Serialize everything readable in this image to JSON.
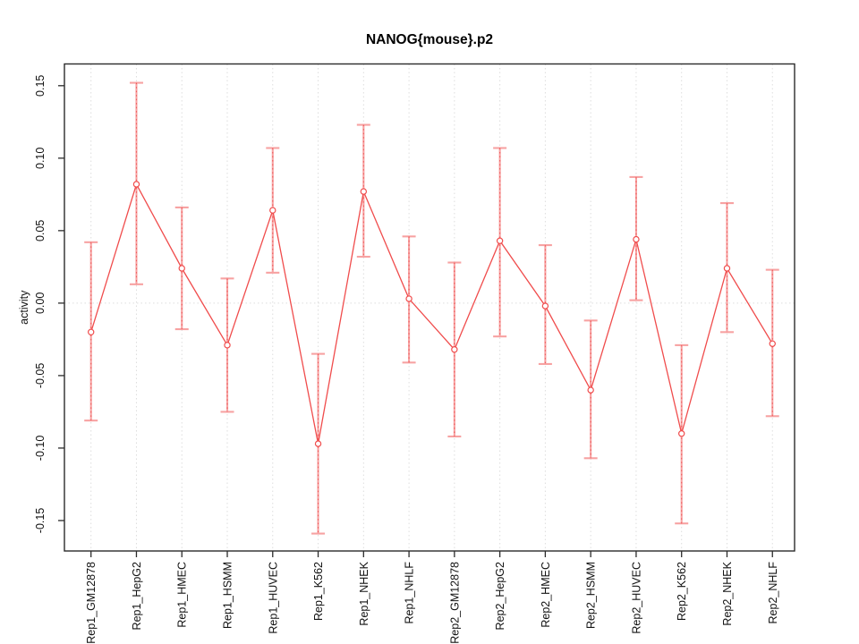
{
  "chart_data": {
    "type": "line",
    "title": "NANOG{mouse}.p2",
    "xlabel": "",
    "ylabel": "activity",
    "legend": null,
    "grid": {
      "vertical_dotted_gridlines": true,
      "zero_reference_dotted_line": true
    },
    "categories": [
      "Rep1_GM12878",
      "Rep1_HepG2",
      "Rep1_HMEC",
      "Rep1_HSMM",
      "Rep1_HUVEC",
      "Rep1_K562",
      "Rep1_NHEK",
      "Rep1_NHLF",
      "Rep2_GM12878",
      "Rep2_HepG2",
      "Rep2_HMEC",
      "Rep2_HSMM",
      "Rep2_HUVEC",
      "Rep2_K562",
      "Rep2_NHEK",
      "Rep2_NHLF"
    ],
    "values": [
      -0.02,
      0.082,
      0.024,
      -0.029,
      0.064,
      -0.097,
      0.077,
      0.003,
      -0.032,
      0.043,
      -0.002,
      -0.06,
      0.044,
      -0.09,
      0.024,
      -0.028
    ],
    "error_upper": [
      0.042,
      0.152,
      0.066,
      0.017,
      0.107,
      -0.035,
      0.123,
      0.046,
      0.028,
      0.107,
      0.04,
      -0.012,
      0.087,
      -0.029,
      0.069,
      0.023
    ],
    "error_lower": [
      -0.081,
      0.013,
      -0.018,
      -0.075,
      0.021,
      -0.159,
      0.032,
      -0.041,
      -0.092,
      -0.023,
      -0.042,
      -0.107,
      0.002,
      -0.152,
      -0.02,
      -0.078
    ],
    "yticks": [
      -0.15,
      -0.1,
      -0.05,
      0.0,
      0.05,
      0.1,
      0.15
    ],
    "ytick_labels": [
      "-0.15",
      "-0.10",
      "-0.05",
      "0.00",
      "0.05",
      "0.10",
      "0.15"
    ],
    "ylim": [
      -0.171,
      0.165
    ],
    "marker": "open-circle",
    "colors": {
      "series_line": "#f04c4c",
      "marker_stroke": "#f04c4c",
      "marker_fill": "#ffffff",
      "error_bar": "#f7a2a2",
      "error_bar_dot_overlay": "#ee5a5a",
      "gridline": "#dddddd",
      "frame": "#2b2b2b",
      "text": "#111111"
    }
  }
}
